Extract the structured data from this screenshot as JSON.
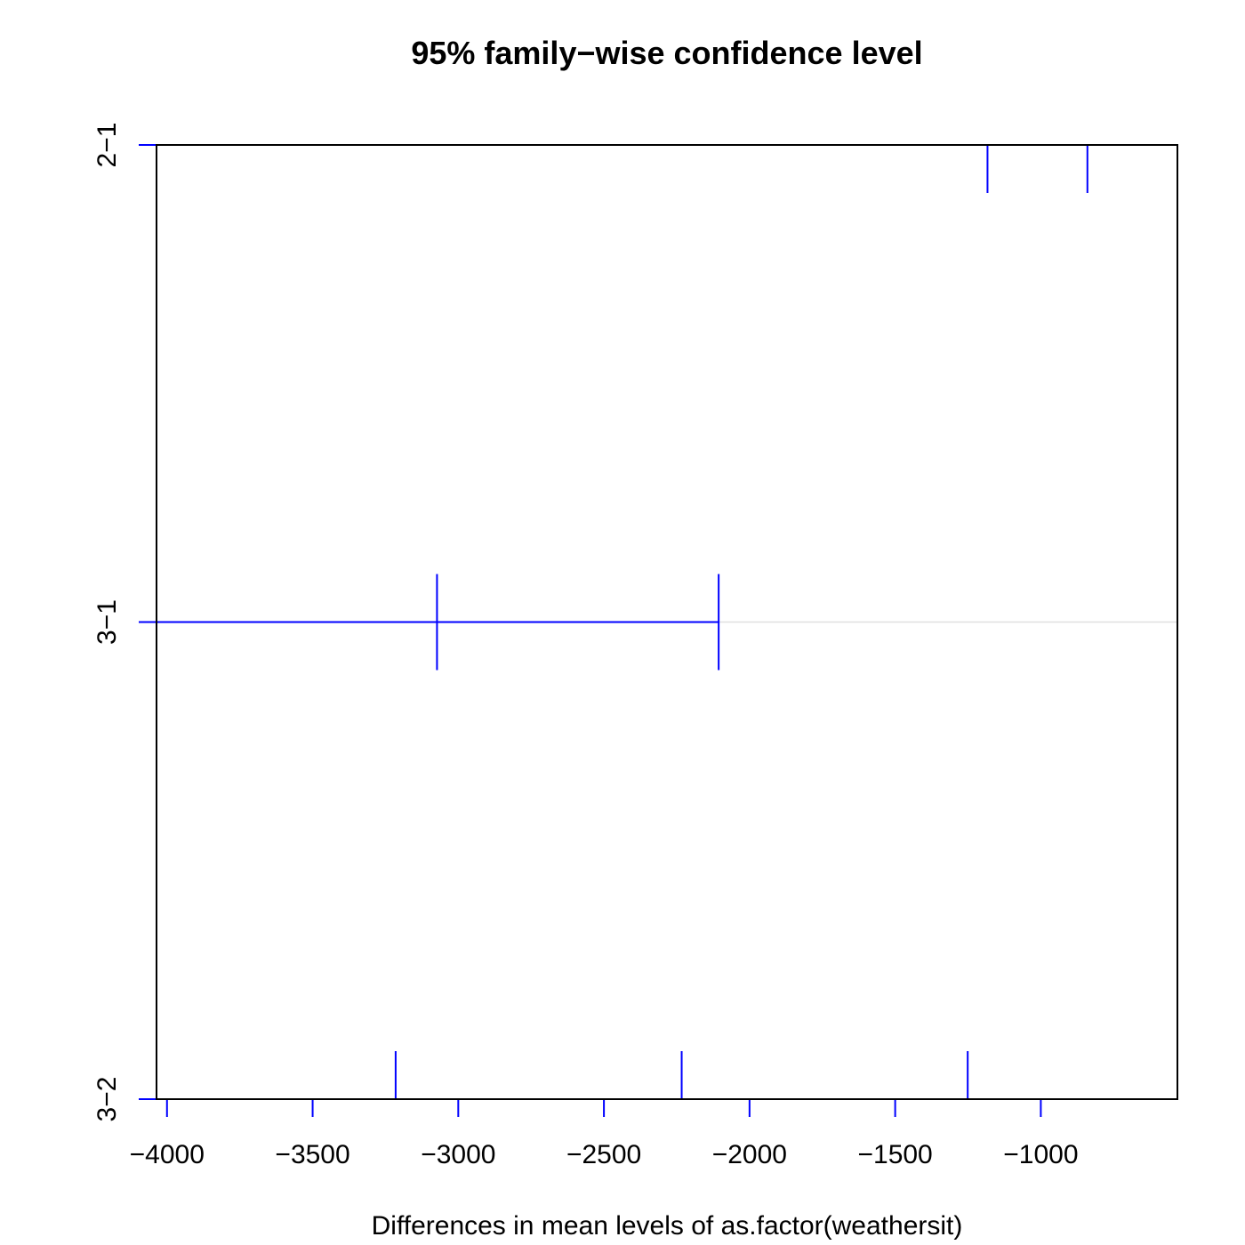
{
  "chart_data": {
    "type": "interval",
    "title": "95% family−wise confidence level",
    "xlabel": "Differences in mean levels of as.factor(weathersit)",
    "ylabel": "",
    "xlim": [
      -4036,
      -531
    ],
    "x_ticks": [
      -4000,
      -3500,
      -3000,
      -2500,
      -2000,
      -1500,
      -1000
    ],
    "x_tick_labels": [
      "−4000",
      "−3500",
      "−3000",
      "−2500",
      "−2000",
      "−1500",
      "−1000"
    ],
    "grid": false,
    "reference_line": 0,
    "comparisons": [
      {
        "label": "2−1",
        "lwr": -1183,
        "estimate": -840,
        "upr": -497
      },
      {
        "label": "3−1",
        "lwr": -4040,
        "estimate": -3073,
        "upr": -2106
      },
      {
        "label": "3−2",
        "lwr": -3215,
        "estimate": -2233,
        "upr": -1251
      }
    ],
    "colors": {
      "interval": "#0000ff",
      "zero_line": "#e0e0e0",
      "frame": "#000000"
    }
  }
}
